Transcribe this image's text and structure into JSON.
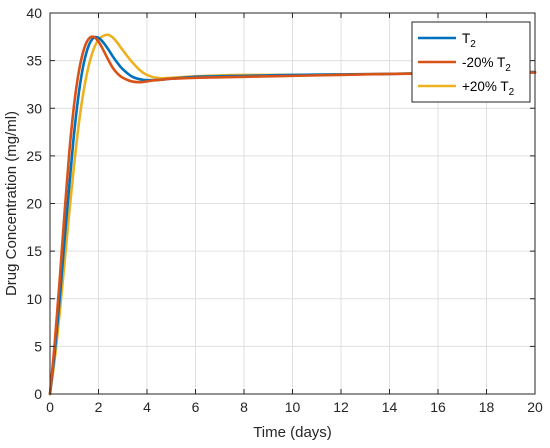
{
  "chart_data": {
    "type": "line",
    "xlabel": "Time (days)",
    "ylabel": "Drug Concentration (mg/ml)",
    "xlim": [
      0,
      20
    ],
    "ylim": [
      0,
      40
    ],
    "xticks": [
      0,
      2,
      4,
      6,
      8,
      10,
      12,
      14,
      16,
      18,
      20
    ],
    "yticks": [
      0,
      5,
      10,
      15,
      20,
      25,
      30,
      35,
      40
    ],
    "xtick_labels": [
      "0",
      "2",
      "4",
      "6",
      "8",
      "10",
      "12",
      "14",
      "16",
      "18",
      "20"
    ],
    "ytick_labels": [
      "0",
      "5",
      "10",
      "15",
      "20",
      "25",
      "30",
      "35",
      "40"
    ],
    "grid": true,
    "legend_position": "top-right",
    "series": [
      {
        "name": "T2",
        "legend_main": "T",
        "legend_sub": "2",
        "color": "#0072BD",
        "x": [
          0,
          0.2,
          0.4,
          0.6,
          0.8,
          1.0,
          1.2,
          1.4,
          1.6,
          1.8,
          2.0,
          2.2,
          2.4,
          2.6,
          2.8,
          3.0,
          3.4,
          3.8,
          4.2,
          4.6,
          5,
          6,
          7,
          8,
          9,
          10,
          12,
          14,
          16,
          18,
          20
        ],
        "y": [
          0,
          4.5,
          10.0,
          16.2,
          22.0,
          27.5,
          31.8,
          34.8,
          36.6,
          37.4,
          37.4,
          36.9,
          36.2,
          35.4,
          34.7,
          34.1,
          33.3,
          33.0,
          32.95,
          33.0,
          33.1,
          33.3,
          33.35,
          33.4,
          33.45,
          33.5,
          33.55,
          33.6,
          33.7,
          33.75,
          33.8
        ]
      },
      {
        "name": "-20% T2",
        "legend_main": "-20% T",
        "legend_sub": "2",
        "color": "#D95319",
        "x": [
          0,
          0.2,
          0.4,
          0.6,
          0.8,
          1.0,
          1.2,
          1.4,
          1.6,
          1.8,
          2.0,
          2.2,
          2.4,
          2.6,
          2.8,
          3.0,
          3.4,
          3.8,
          4.2,
          4.6,
          5,
          6,
          7,
          8,
          9,
          10,
          12,
          14,
          16,
          18,
          20
        ],
        "y": [
          0,
          5.5,
          12.0,
          19.0,
          25.5,
          30.5,
          34.0,
          36.2,
          37.3,
          37.5,
          37.0,
          36.1,
          35.1,
          34.2,
          33.6,
          33.2,
          32.8,
          32.75,
          32.9,
          33.0,
          33.1,
          33.2,
          33.25,
          33.3,
          33.35,
          33.4,
          33.5,
          33.6,
          33.65,
          33.7,
          33.75
        ]
      },
      {
        "name": "+20% T2",
        "legend_main": "+20% T",
        "legend_sub": "2",
        "color": "#EDB120",
        "x": [
          0,
          0.2,
          0.4,
          0.6,
          0.8,
          1.0,
          1.2,
          1.4,
          1.6,
          1.8,
          2.0,
          2.2,
          2.4,
          2.6,
          2.8,
          3.0,
          3.4,
          3.8,
          4.2,
          4.6,
          5,
          6,
          7,
          8,
          9,
          10,
          12,
          14,
          16,
          18,
          20
        ],
        "y": [
          0,
          3.8,
          8.5,
          13.8,
          19.2,
          24.2,
          28.6,
          32.0,
          34.5,
          36.2,
          37.2,
          37.6,
          37.7,
          37.4,
          36.8,
          36.1,
          34.8,
          33.8,
          33.3,
          33.15,
          33.2,
          33.35,
          33.45,
          33.5,
          33.5,
          33.5,
          33.55,
          33.6,
          33.7,
          33.75,
          33.8
        ]
      }
    ]
  }
}
